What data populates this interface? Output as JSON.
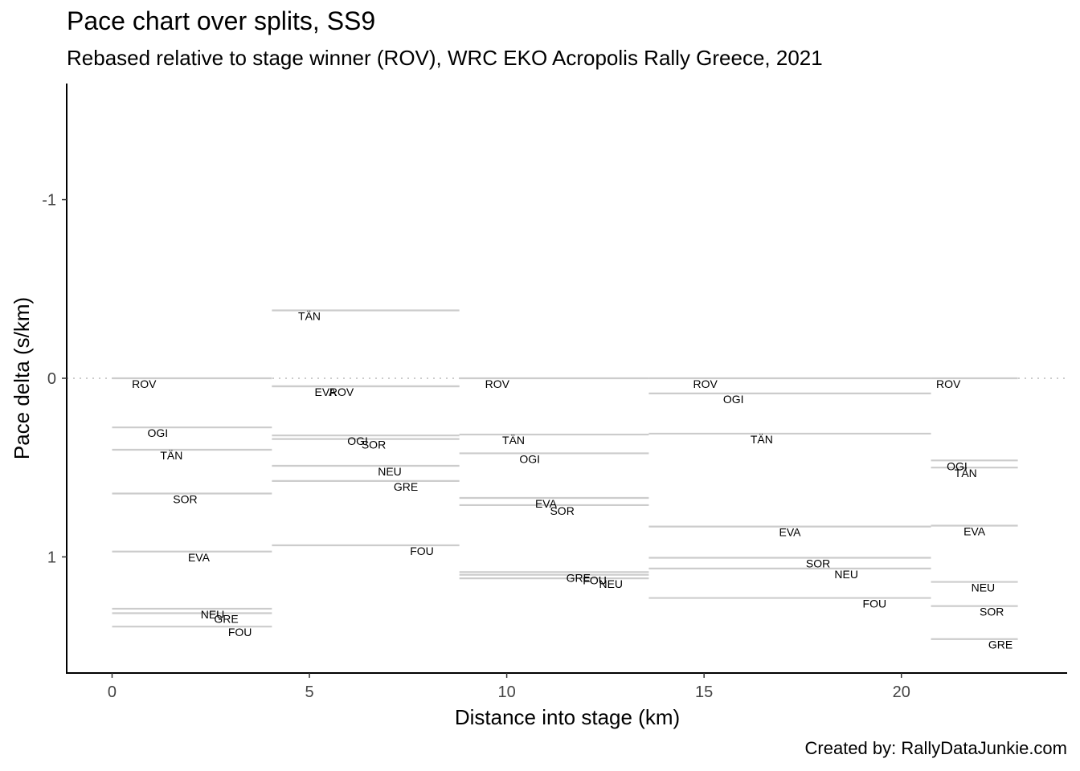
{
  "chart_data": {
    "type": "line",
    "title": "Pace chart over splits, SS9",
    "subtitle": "Rebased relative to stage winner (ROV), WRC EKO Acropolis Rally Greece, 2021",
    "caption": "Created by: RallyDataJunkie.com",
    "xlabel": "Distance into stage (km)",
    "ylabel": "Pace delta (s/km)",
    "x_ticks": [
      "0",
      "5",
      "10",
      "15",
      "20"
    ],
    "y_ticks": [
      "-1",
      "0",
      "1"
    ],
    "xlim": [
      -1.15,
      24.2
    ],
    "ylim": [
      1.65,
      -1.65
    ],
    "y_reversed": true,
    "grid": false,
    "reference_line": {
      "y": 0,
      "style": "dotted",
      "color": "#cccccc"
    },
    "segment_color": "#cccccc",
    "splits": [
      {
        "start": 0,
        "end": 4.05,
        "drivers": [
          {
            "code": "ROV",
            "pace": 0.0
          },
          {
            "code": "OGI",
            "pace": 0.275
          },
          {
            "code": "TÄN",
            "pace": 0.4
          },
          {
            "code": "SOR",
            "pace": 0.645
          },
          {
            "code": "EVA",
            "pace": 0.97
          },
          {
            "code": "NEU",
            "pace": 1.29
          },
          {
            "code": "GRE",
            "pace": 1.315
          },
          {
            "code": "FOU",
            "pace": 1.39
          }
        ]
      },
      {
        "start": 4.05,
        "end": 8.8,
        "drivers": [
          {
            "code": "TÄN",
            "pace": -0.38
          },
          {
            "code": "EVA",
            "pace": 0.045
          },
          {
            "code": "ROV",
            "pace": 0.045
          },
          {
            "code": "OGI",
            "pace": 0.32
          },
          {
            "code": "SOR",
            "pace": 0.34
          },
          {
            "code": "NEU",
            "pace": 0.49
          },
          {
            "code": "GRE",
            "pace": 0.575
          },
          {
            "code": "FOU",
            "pace": 0.935
          }
        ]
      },
      {
        "start": 8.8,
        "end": 13.6,
        "drivers": [
          {
            "code": "ROV",
            "pace": 0.0
          },
          {
            "code": "TÄN",
            "pace": 0.315
          },
          {
            "code": "OGI",
            "pace": 0.42
          },
          {
            "code": "EVA",
            "pace": 0.67
          },
          {
            "code": "SOR",
            "pace": 0.71
          },
          {
            "code": "GRE",
            "pace": 1.085
          },
          {
            "code": "FOU",
            "pace": 1.1
          },
          {
            "code": "NEU",
            "pace": 1.12
          }
        ]
      },
      {
        "start": 13.6,
        "end": 20.75,
        "drivers": [
          {
            "code": "ROV",
            "pace": 0.0
          },
          {
            "code": "OGI",
            "pace": 0.085
          },
          {
            "code": "TÄN",
            "pace": 0.31
          },
          {
            "code": "EVA",
            "pace": 0.83
          },
          {
            "code": "SOR",
            "pace": 1.005
          },
          {
            "code": "NEU",
            "pace": 1.065
          },
          {
            "code": "FOU",
            "pace": 1.23
          }
        ]
      },
      {
        "start": 20.75,
        "end": 22.95,
        "drivers": [
          {
            "code": "ROV",
            "pace": 0.0
          },
          {
            "code": "OGI",
            "pace": 0.46
          },
          {
            "code": "TÄN",
            "pace": 0.5
          },
          {
            "code": "EVA",
            "pace": 0.825
          },
          {
            "code": "NEU",
            "pace": 1.14
          },
          {
            "code": "SOR",
            "pace": 1.275
          },
          {
            "code": "GRE",
            "pace": 1.46
          }
        ]
      }
    ]
  }
}
